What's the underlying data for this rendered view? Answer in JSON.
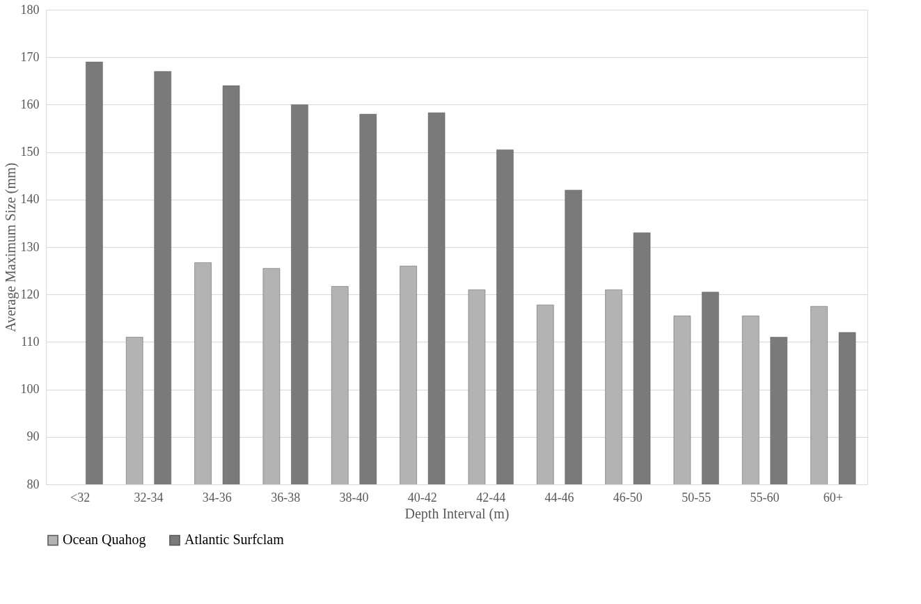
{
  "chart_data": {
    "type": "bar",
    "xlabel": "Depth Interval (m)",
    "ylabel": "Average Maximum Size (mm)",
    "categories": [
      "<32",
      "32-34",
      "34-36",
      "36-38",
      "38-40",
      "40-42",
      "42-44",
      "44-46",
      "46-50",
      "50-55",
      "55-60",
      "60+"
    ],
    "series": [
      {
        "name": "Ocean Quahog",
        "color": "#b3b3b3",
        "values": [
          null,
          111,
          126.7,
          125.5,
          121.7,
          126,
          121,
          117.8,
          121,
          115.5,
          115.5,
          117.5
        ]
      },
      {
        "name": "Atlantic Surfclam",
        "color": "#7a7a7a",
        "values": [
          169,
          167,
          164,
          160,
          158,
          158.3,
          150.5,
          142,
          133,
          120.5,
          111,
          112
        ]
      }
    ],
    "ylim": [
      80,
      180
    ],
    "yticks": [
      80,
      90,
      100,
      110,
      120,
      130,
      140,
      150,
      160,
      170,
      180
    ],
    "grid": "y",
    "legend": "bottom"
  }
}
